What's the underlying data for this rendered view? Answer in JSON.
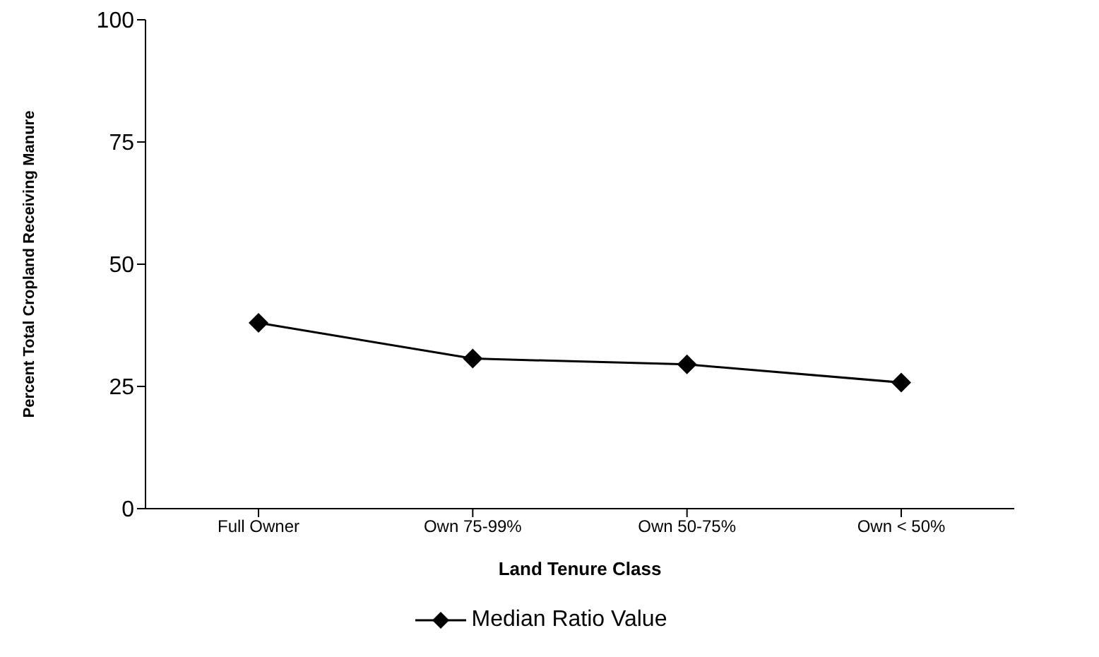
{
  "chart_data": {
    "type": "line",
    "xlabel": "Land Tenure Class",
    "ylabel": "Percent Total Cropland Receiving Manure",
    "categories": [
      "Full Owner",
      "Own 75-99%",
      "Own 50-75%",
      "Own < 50%"
    ],
    "series": [
      {
        "name": "Median Ratio Value",
        "color": "#000000",
        "values": [
          38,
          30.7,
          29.5,
          25.8
        ]
      }
    ],
    "ylim": [
      0,
      100
    ],
    "yticks": [
      0,
      25,
      50,
      75,
      100
    ],
    "grid": false,
    "legend": "bottom",
    "marker": "diamond",
    "line_style": "solid"
  }
}
